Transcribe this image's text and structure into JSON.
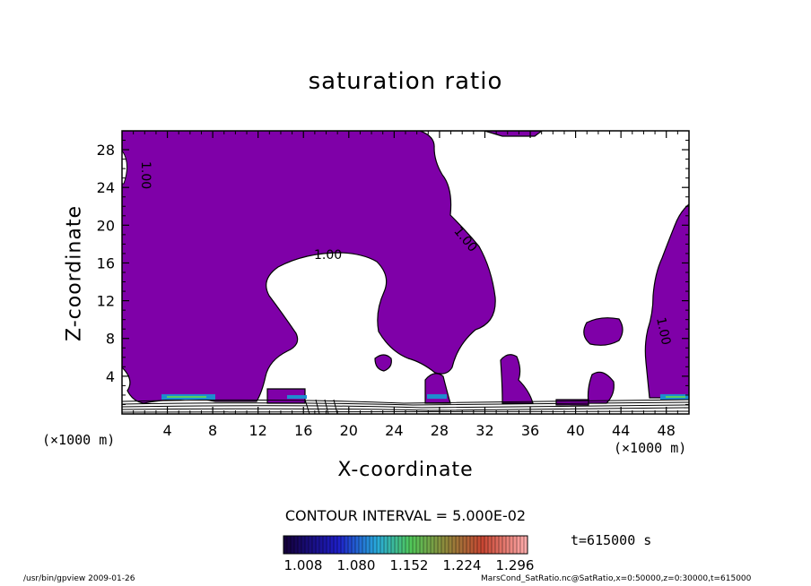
{
  "chart_data": {
    "type": "contour",
    "title": "saturation ratio",
    "xlabel": "X-coordinate",
    "ylabel": "Z-coordinate",
    "x_unit": "(×1000 m)",
    "z_unit": "(×1000 m)",
    "xlim": [
      0,
      50
    ],
    "ylim": [
      0,
      30
    ],
    "x_ticks": [
      4,
      8,
      12,
      16,
      20,
      24,
      28,
      32,
      36,
      40,
      44,
      48
    ],
    "y_ticks": [
      4,
      8,
      12,
      16,
      20,
      24,
      28
    ],
    "contour_interval_text": "CONTOUR INTERVAL = 5.000E-02",
    "contour_labels": [
      "1.00",
      "1.00",
      "1.00",
      "1.00"
    ],
    "fill_color": "#7f00a8",
    "colorbar": {
      "ticks": [
        "1.008",
        "1.080",
        "1.152",
        "1.224",
        "1.296"
      ]
    },
    "time_text": "t=615000 s"
  },
  "footer": {
    "left": "/usr/bin/gpview  2009-01-26",
    "right": "MarsCond_SatRatio.nc@SatRatio,x=0:50000,z=0:30000,t=615000"
  }
}
